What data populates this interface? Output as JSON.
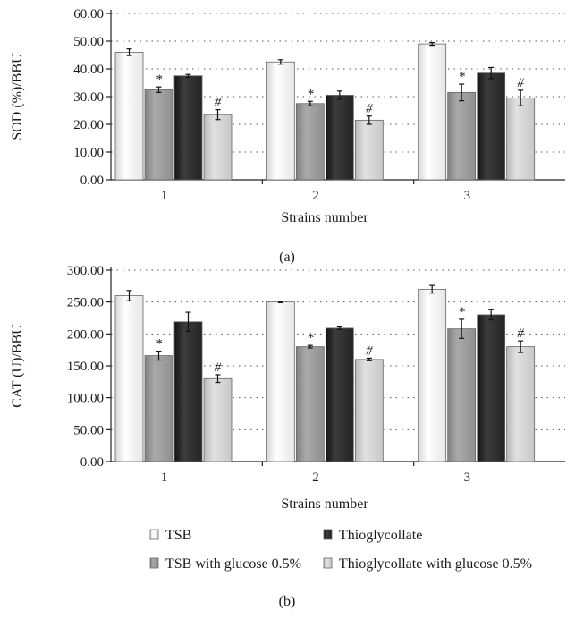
{
  "colors": {
    "TSB": "#ffffff",
    "TSB with glucose 0.5%": "#a9a9a9",
    "Thioglycollate": "#3c3c3c",
    "Thioglycollate with glucose 0.5%": "#e1e1e1"
  },
  "legend": {
    "items": [
      "TSB",
      "Thioglycollate",
      "TSB with glucose 0.5%",
      "Thioglycollate with glucose 0.5%"
    ]
  },
  "chart_data": [
    {
      "type": "bar",
      "panel_label": "(a)",
      "ylabel": "SOD (%)/BBU",
      "xlabel": "Strains number",
      "categories": [
        "1",
        "2",
        "3"
      ],
      "ylim": [
        0,
        60
      ],
      "yticks": [
        "0.00",
        "10.00",
        "20.00",
        "30.00",
        "40.00",
        "50.00",
        "60.00"
      ],
      "grid": true,
      "series": [
        {
          "name": "TSB",
          "values": [
            46.0,
            42.5,
            49.0
          ],
          "errors": [
            1.2,
            0.8,
            0.5
          ],
          "markers": [
            "",
            "",
            ""
          ]
        },
        {
          "name": "TSB with glucose 0.5%",
          "values": [
            32.5,
            27.5,
            31.5
          ],
          "errors": [
            1.0,
            0.8,
            3.0
          ],
          "markers": [
            "*",
            "*",
            "*"
          ]
        },
        {
          "name": "Thioglycollate",
          "values": [
            37.5,
            30.5,
            38.5
          ],
          "errors": [
            0.5,
            1.5,
            2.0
          ],
          "markers": [
            "",
            "",
            ""
          ]
        },
        {
          "name": "Thioglycollate with glucose 0.5%",
          "values": [
            23.5,
            21.5,
            29.5
          ],
          "errors": [
            1.8,
            1.5,
            2.8
          ],
          "markers": [
            "#",
            "#",
            "#"
          ]
        }
      ]
    },
    {
      "type": "bar",
      "panel_label": "(b)",
      "ylabel": "CAT (U)/BBU",
      "xlabel": "Strains number",
      "categories": [
        "1",
        "2",
        "3"
      ],
      "ylim": [
        0,
        300
      ],
      "yticks": [
        "0.00",
        "50.00",
        "100.00",
        "150.00",
        "200.00",
        "250.00",
        "300.00"
      ],
      "grid": true,
      "series": [
        {
          "name": "TSB",
          "values": [
            260,
            250,
            270
          ],
          "errors": [
            8,
            1,
            6
          ],
          "markers": [
            "",
            "",
            ""
          ]
        },
        {
          "name": "TSB with glucose 0.5%",
          "values": [
            166,
            180,
            208
          ],
          "errors": [
            7,
            2,
            15
          ],
          "markers": [
            "*",
            "*",
            "*"
          ]
        },
        {
          "name": "Thioglycollate",
          "values": [
            219,
            209,
            230
          ],
          "errors": [
            15,
            2,
            8
          ],
          "markers": [
            "",
            "",
            ""
          ]
        },
        {
          "name": "Thioglycollate with glucose 0.5%",
          "values": [
            130,
            160,
            180
          ],
          "errors": [
            6,
            2,
            9
          ],
          "markers": [
            "#",
            "#",
            "#"
          ]
        }
      ]
    }
  ]
}
